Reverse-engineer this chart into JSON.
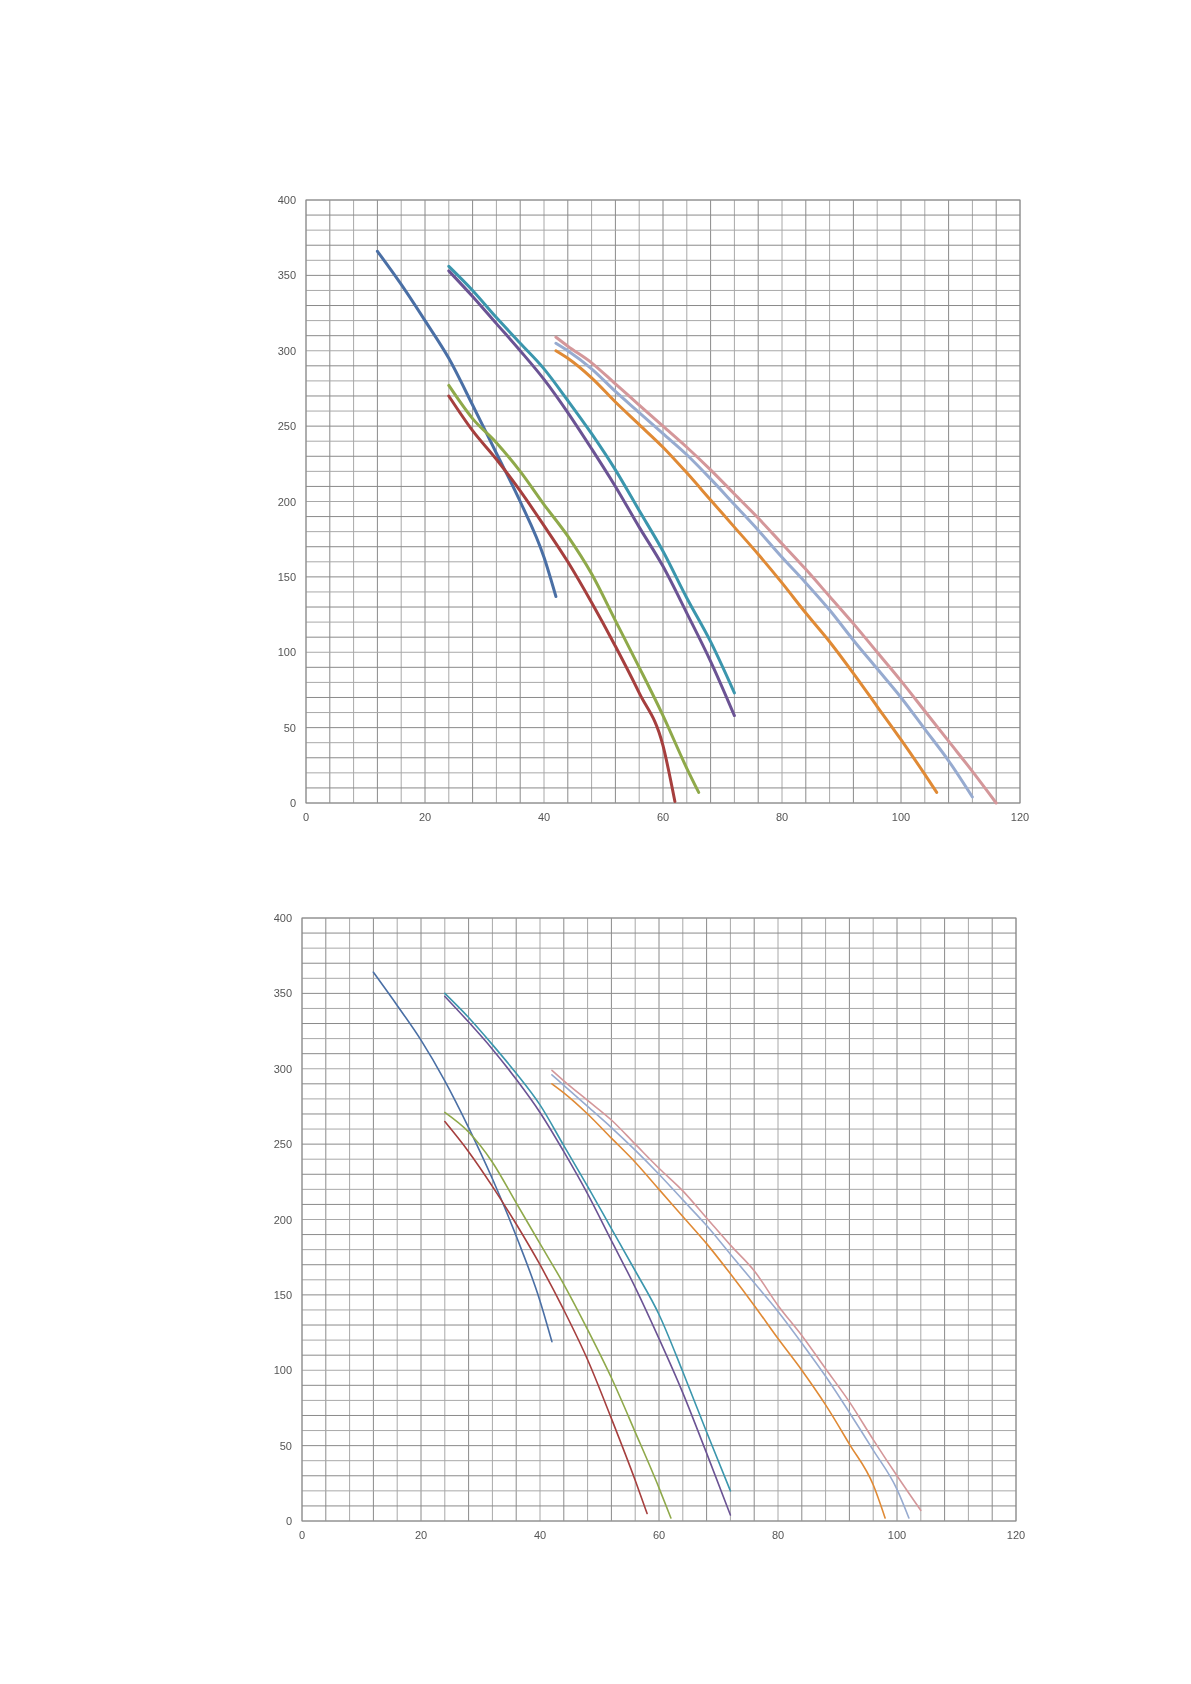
{
  "chart_data": [
    {
      "type": "line",
      "xlim": [
        0,
        120
      ],
      "ylim": [
        0,
        400
      ],
      "grid": true,
      "marker": "none",
      "line_style": "solid",
      "xticks": [
        0,
        {
          "value": 4,
          "label": null
        },
        {
          "value": 8,
          "label": null
        },
        {
          "value": 12,
          "label": null
        },
        {
          "value": 16,
          "label": null
        },
        20,
        {
          "value": 24,
          "label": null
        },
        {
          "value": 28,
          "label": null
        },
        {
          "value": 32,
          "label": null
        },
        {
          "value": 36,
          "label": null
        },
        40,
        {
          "value": 44,
          "label": null
        },
        {
          "value": 48,
          "label": null
        },
        {
          "value": 52,
          "label": null
        },
        {
          "value": 56,
          "label": null
        },
        60,
        {
          "value": 64,
          "label": null
        },
        {
          "value": 68,
          "label": null
        },
        {
          "value": 72,
          "label": null
        },
        {
          "value": 76,
          "label": null
        },
        80,
        {
          "value": 84,
          "label": null
        },
        {
          "value": 88,
          "label": null
        },
        {
          "value": 92,
          "label": null
        },
        {
          "value": 96,
          "label": null
        },
        100,
        {
          "value": 104,
          "label": null
        },
        {
          "value": 108,
          "label": null
        },
        {
          "value": 112,
          "label": null
        },
        {
          "value": 116,
          "label": null
        },
        120
      ],
      "yticks": [
        0,
        {
          "value": 10,
          "label": null
        },
        {
          "value": 20,
          "label": null
        },
        {
          "value": 30,
          "label": null
        },
        {
          "value": 40,
          "label": null
        },
        50,
        {
          "value": 60,
          "label": null
        },
        {
          "value": 70,
          "label": null
        },
        {
          "value": 80,
          "label": null
        },
        {
          "value": 90,
          "label": null
        },
        100,
        {
          "value": 110,
          "label": null
        },
        {
          "value": 120,
          "label": null
        },
        {
          "value": 130,
          "label": null
        },
        {
          "value": 140,
          "label": null
        },
        150,
        {
          "value": 160,
          "label": null
        },
        {
          "value": 170,
          "label": null
        },
        {
          "value": 180,
          "label": null
        },
        {
          "value": 190,
          "label": null
        },
        200,
        {
          "value": 210,
          "label": null
        },
        {
          "value": 220,
          "label": null
        },
        {
          "value": 230,
          "label": null
        },
        {
          "value": 240,
          "label": null
        },
        250,
        {
          "value": 260,
          "label": null
        },
        {
          "value": 270,
          "label": null
        },
        {
          "value": 280,
          "label": null
        },
        {
          "value": 290,
          "label": null
        },
        300,
        {
          "value": 310,
          "label": null
        },
        {
          "value": 320,
          "label": null
        },
        {
          "value": 330,
          "label": null
        },
        {
          "value": 340,
          "label": null
        },
        350,
        {
          "value": 360,
          "label": null
        },
        {
          "value": 370,
          "label": null
        },
        {
          "value": 380,
          "label": null
        },
        {
          "value": 390,
          "label": null
        },
        400
      ],
      "series": [
        {
          "color": "#4a6fa5",
          "x": [
            12,
            16,
            20,
            24,
            28,
            32,
            36,
            40,
            42
          ],
          "values": [
            366,
            344,
            320,
            295,
            264,
            232,
            200,
            163,
            137
          ]
        },
        {
          "color": "#a63f3e",
          "x": [
            24,
            28,
            32,
            36,
            40,
            44,
            48,
            52,
            56,
            60,
            62
          ],
          "values": [
            270,
            247,
            228,
            207,
            184,
            160,
            133,
            104,
            73,
            38,
            1
          ]
        },
        {
          "color": "#8fa94a",
          "x": [
            24,
            28,
            32,
            36,
            40,
            44,
            48,
            52,
            56,
            60,
            64,
            66
          ],
          "values": [
            277,
            255,
            239,
            220,
            198,
            177,
            152,
            121,
            90,
            58,
            23,
            7
          ]
        },
        {
          "color": "#6b5394",
          "x": [
            24,
            28,
            32,
            36,
            40,
            44,
            48,
            52,
            56,
            60,
            64,
            68,
            72
          ],
          "values": [
            353,
            336,
            318,
            300,
            281,
            259,
            235,
            210,
            183,
            157,
            126,
            94,
            58
          ]
        },
        {
          "color": "#3b96ad",
          "x": [
            24,
            28,
            32,
            36,
            40,
            44,
            48,
            52,
            56,
            60,
            64,
            68,
            72
          ],
          "values": [
            356,
            340,
            322,
            305,
            288,
            267,
            245,
            221,
            194,
            167,
            136,
            107,
            73
          ]
        },
        {
          "color": "#e08a35",
          "x": [
            42,
            44,
            48,
            52,
            56,
            60,
            64,
            68,
            72,
            76,
            80,
            84,
            88,
            92,
            96,
            100,
            104,
            106
          ],
          "values": [
            300,
            295,
            282,
            266,
            251,
            236,
            219,
            201,
            183,
            165,
            146,
            126,
            107,
            86,
            64,
            42,
            19,
            7
          ]
        },
        {
          "color": "#97abd0",
          "x": [
            42,
            44,
            48,
            52,
            56,
            60,
            64,
            68,
            72,
            76,
            80,
            84,
            88,
            92,
            96,
            100,
            104,
            108,
            112
          ],
          "values": [
            305,
            300,
            288,
            273,
            259,
            245,
            231,
            215,
            198,
            181,
            163,
            146,
            128,
            108,
            89,
            70,
            49,
            28,
            4
          ]
        },
        {
          "color": "#d4979a",
          "x": [
            42,
            44,
            48,
            52,
            56,
            60,
            64,
            68,
            72,
            76,
            80,
            84,
            88,
            92,
            96,
            100,
            104,
            108,
            112,
            116
          ],
          "values": [
            309,
            303,
            292,
            278,
            264,
            250,
            236,
            221,
            205,
            189,
            172,
            155,
            137,
            119,
            100,
            81,
            61,
            41,
            21,
            0
          ]
        }
      ]
    },
    {
      "type": "line",
      "xlim": [
        0,
        120
      ],
      "ylim": [
        0,
        400
      ],
      "grid": true,
      "marker": "none",
      "line_style": "solid",
      "xticks": [
        0,
        {
          "value": 4,
          "label": null
        },
        {
          "value": 8,
          "label": null
        },
        {
          "value": 12,
          "label": null
        },
        {
          "value": 16,
          "label": null
        },
        20,
        {
          "value": 24,
          "label": null
        },
        {
          "value": 28,
          "label": null
        },
        {
          "value": 32,
          "label": null
        },
        {
          "value": 36,
          "label": null
        },
        40,
        {
          "value": 44,
          "label": null
        },
        {
          "value": 48,
          "label": null
        },
        {
          "value": 52,
          "label": null
        },
        {
          "value": 56,
          "label": null
        },
        60,
        {
          "value": 64,
          "label": null
        },
        {
          "value": 68,
          "label": null
        },
        {
          "value": 72,
          "label": null
        },
        {
          "value": 76,
          "label": null
        },
        80,
        {
          "value": 84,
          "label": null
        },
        {
          "value": 88,
          "label": null
        },
        {
          "value": 92,
          "label": null
        },
        {
          "value": 96,
          "label": null
        },
        100,
        {
          "value": 104,
          "label": null
        },
        {
          "value": 108,
          "label": null
        },
        {
          "value": 112,
          "label": null
        },
        {
          "value": 116,
          "label": null
        },
        120
      ],
      "yticks": [
        0,
        {
          "value": 10,
          "label": null
        },
        {
          "value": 20,
          "label": null
        },
        {
          "value": 30,
          "label": null
        },
        {
          "value": 40,
          "label": null
        },
        50,
        {
          "value": 60,
          "label": null
        },
        {
          "value": 70,
          "label": null
        },
        {
          "value": 80,
          "label": null
        },
        {
          "value": 90,
          "label": null
        },
        100,
        {
          "value": 110,
          "label": null
        },
        {
          "value": 120,
          "label": null
        },
        {
          "value": 130,
          "label": null
        },
        {
          "value": 140,
          "label": null
        },
        150,
        {
          "value": 160,
          "label": null
        },
        {
          "value": 170,
          "label": null
        },
        {
          "value": 180,
          "label": null
        },
        {
          "value": 190,
          "label": null
        },
        200,
        {
          "value": 210,
          "label": null
        },
        {
          "value": 220,
          "label": null
        },
        {
          "value": 230,
          "label": null
        },
        {
          "value": 240,
          "label": null
        },
        250,
        {
          "value": 260,
          "label": null
        },
        {
          "value": 270,
          "label": null
        },
        {
          "value": 280,
          "label": null
        },
        {
          "value": 290,
          "label": null
        },
        300,
        {
          "value": 310,
          "label": null
        },
        {
          "value": 320,
          "label": null
        },
        {
          "value": 330,
          "label": null
        },
        {
          "value": 340,
          "label": null
        },
        350,
        {
          "value": 360,
          "label": null
        },
        {
          "value": 370,
          "label": null
        },
        {
          "value": 380,
          "label": null
        },
        {
          "value": 390,
          "label": null
        },
        400
      ],
      "series": [
        {
          "color": "#4a6fa5",
          "x": [
            12,
            16,
            20,
            24,
            28,
            32,
            36,
            40,
            42
          ],
          "values": [
            364,
            342,
            319,
            292,
            261,
            227,
            189,
            146,
            119
          ]
        },
        {
          "color": "#a63f3e",
          "x": [
            24,
            28,
            32,
            36,
            40,
            44,
            48,
            52,
            56,
            58
          ],
          "values": [
            265,
            245,
            222,
            197,
            170,
            140,
            107,
            68,
            27,
            5
          ]
        },
        {
          "color": "#8fa94a",
          "x": [
            24,
            28,
            32,
            36,
            40,
            44,
            48,
            52,
            56,
            60,
            62
          ],
          "values": [
            271,
            258,
            238,
            211,
            184,
            157,
            127,
            95,
            59,
            22,
            2
          ]
        },
        {
          "color": "#6b5394",
          "x": [
            24,
            28,
            32,
            36,
            40,
            44,
            48,
            52,
            56,
            60,
            64,
            68,
            72
          ],
          "values": [
            348,
            331,
            313,
            293,
            271,
            245,
            217,
            186,
            155,
            121,
            85,
            45,
            4
          ]
        },
        {
          "color": "#3b96ad",
          "x": [
            24,
            28,
            32,
            36,
            40,
            44,
            48,
            52,
            56,
            60,
            64,
            68,
            72
          ],
          "values": [
            350,
            334,
            316,
            297,
            276,
            249,
            222,
            194,
            166,
            137,
            99,
            59,
            20
          ]
        },
        {
          "color": "#e08a35",
          "x": [
            42,
            44,
            48,
            52,
            56,
            60,
            64,
            68,
            72,
            76,
            80,
            84,
            88,
            92,
            96,
            98
          ],
          "values": [
            290,
            284,
            270,
            254,
            238,
            220,
            202,
            184,
            164,
            143,
            121,
            100,
            77,
            51,
            24,
            2
          ]
        },
        {
          "color": "#97abd0",
          "x": [
            42,
            44,
            48,
            52,
            56,
            60,
            64,
            68,
            72,
            76,
            80,
            84,
            88,
            92,
            96,
            100,
            102
          ],
          "values": [
            296,
            289,
            275,
            261,
            246,
            230,
            213,
            196,
            177,
            158,
            139,
            118,
            96,
            72,
            47,
            21,
            2
          ]
        },
        {
          "color": "#d4979a",
          "x": [
            42,
            44,
            48,
            52,
            56,
            60,
            64,
            68,
            72,
            76,
            80,
            84,
            88,
            92,
            96,
            100,
            104
          ],
          "values": [
            299,
            292,
            279,
            266,
            250,
            234,
            219,
            201,
            183,
            166,
            143,
            123,
            101,
            79,
            54,
            30,
            7
          ]
        }
      ]
    }
  ]
}
